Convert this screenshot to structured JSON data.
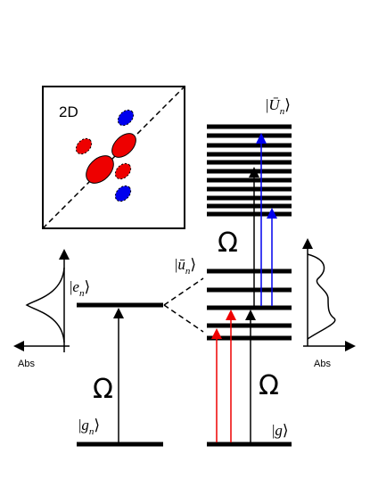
{
  "panel_title": "2D",
  "omega_labels": [
    "Ω",
    "Ω",
    "Ω"
  ],
  "abs_labels": [
    "Abs",
    "Abs"
  ],
  "kets": [
    {
      "open": "|",
      "symbol": "Ū",
      "sub": "n",
      "close": "⟩"
    },
    {
      "open": "|",
      "symbol": "ū",
      "sub": "n",
      "close": "⟩"
    },
    {
      "open": "|",
      "symbol": "e",
      "sub": "n",
      "close": "⟩"
    },
    {
      "open": "|",
      "symbol": "g",
      "sub": "n",
      "close": "⟩"
    },
    {
      "open": "|",
      "symbol": "g",
      "close": "⟩"
    }
  ]
}
